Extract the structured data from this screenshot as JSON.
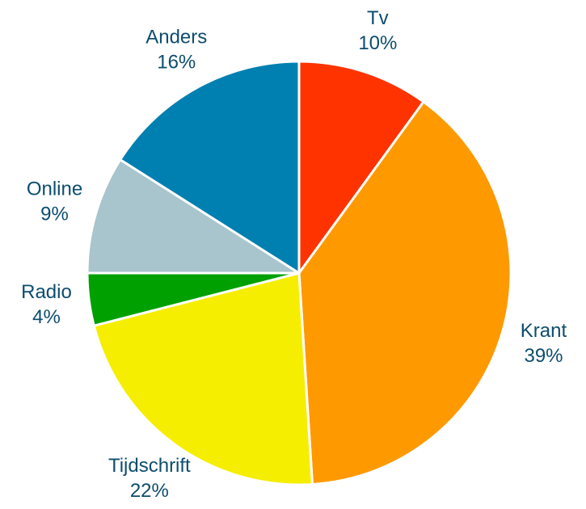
{
  "chart_data": {
    "type": "pie",
    "categories": [
      "Tv",
      "Krant",
      "Tijdschrift",
      "Radio",
      "Online",
      "Anders"
    ],
    "values": [
      10,
      39,
      22,
      4,
      9,
      16
    ],
    "value_labels": [
      "10%",
      "39%",
      "22%",
      "4%",
      "9%",
      "16%"
    ],
    "colors": [
      "#ff3300",
      "#ff9900",
      "#f5ee00",
      "#00a000",
      "#a8c4cc",
      "#0080b0"
    ]
  }
}
